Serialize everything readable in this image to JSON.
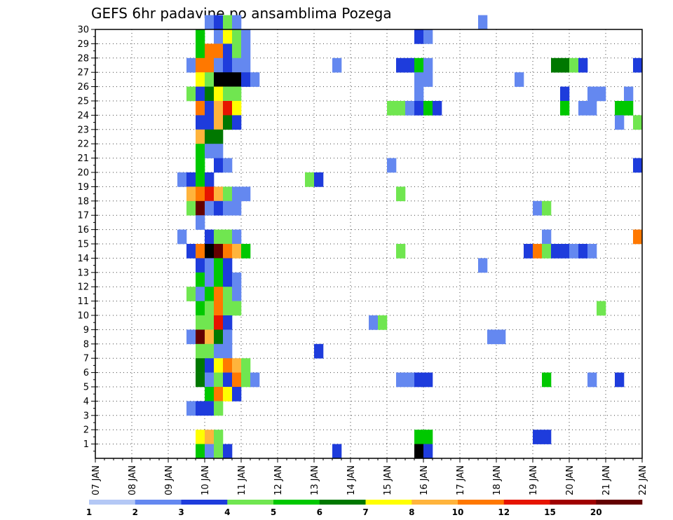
{
  "chart_data": {
    "type": "heatmap",
    "title": "GEFS 6hr padavine po ansamblima Pozega",
    "x_ticks": [
      "07 JAN",
      "08 JAN",
      "09 JAN",
      "10 JAN",
      "11 JAN",
      "12 JAN",
      "13 JAN",
      "14 JAN",
      "15 JAN",
      "16 JAN",
      "17 JAN",
      "18 JAN",
      "19 JAN",
      "20 JAN",
      "21 JAN",
      "22 JAN"
    ],
    "y_ticks": [
      "1",
      "2",
      "3",
      "4",
      "5",
      "6",
      "7",
      "8",
      "9",
      "10",
      "11",
      "12",
      "13",
      "14",
      "15",
      "16",
      "17",
      "18",
      "19",
      "20",
      "21",
      "22",
      "23",
      "24",
      "25",
      "26",
      "27",
      "28",
      "29",
      "30"
    ],
    "ylim": [
      0,
      30
    ],
    "x_step_hours": 6,
    "grid": true,
    "colorbar": {
      "labels": [
        "1",
        "2",
        "3",
        "4",
        "5",
        "6",
        "7",
        "8",
        "10",
        "12",
        "15",
        "20"
      ],
      "colors": [
        "#b4c8f5",
        "#6488f0",
        "#1e3cdc",
        "#70e650",
        "#00c800",
        "#007800",
        "#ffff00",
        "#ffb43c",
        "#ff7800",
        "#e61400",
        "#a00000",
        "#640000"
      ]
    },
    "cells": [
      [
        10,
        30,
        1
      ],
      [
        10.25,
        30,
        2
      ],
      [
        10.5,
        30,
        3
      ],
      [
        10.75,
        30,
        1
      ],
      [
        9.75,
        29,
        4
      ],
      [
        10.25,
        29,
        1
      ],
      [
        10.5,
        29,
        6
      ],
      [
        10.75,
        29,
        3
      ],
      [
        11,
        29,
        1
      ],
      [
        15.75,
        29,
        2
      ],
      [
        16,
        29,
        1
      ],
      [
        17.5,
        30,
        1
      ],
      [
        9.75,
        28,
        4
      ],
      [
        10,
        28,
        8
      ],
      [
        10.25,
        28,
        8
      ],
      [
        10.5,
        28,
        2
      ],
      [
        10.75,
        28,
        3
      ],
      [
        11,
        28,
        1
      ],
      [
        9.5,
        27,
        1
      ],
      [
        9.75,
        27,
        8
      ],
      [
        10,
        27,
        8
      ],
      [
        10.25,
        27,
        1
      ],
      [
        10.5,
        27,
        2
      ],
      [
        10.75,
        27,
        1
      ],
      [
        11,
        27,
        1
      ],
      [
        13.5,
        27,
        1
      ],
      [
        15.25,
        27,
        2
      ],
      [
        15.5,
        27,
        2
      ],
      [
        15.75,
        27,
        4
      ],
      [
        16,
        27,
        1
      ],
      [
        19.5,
        27,
        5
      ],
      [
        19.75,
        27,
        5
      ],
      [
        20,
        27,
        3
      ],
      [
        20.25,
        27,
        2
      ],
      [
        21.75,
        27,
        2
      ],
      [
        9.75,
        26,
        6
      ],
      [
        10,
        26,
        3
      ],
      [
        10.25,
        26,
        13
      ],
      [
        10.5,
        26,
        14
      ],
      [
        10.75,
        26,
        14
      ],
      [
        11,
        26,
        2
      ],
      [
        11.25,
        26,
        1
      ],
      [
        15.75,
        26,
        1
      ],
      [
        16,
        26,
        1
      ],
      [
        18.5,
        26,
        1
      ],
      [
        9.5,
        25,
        3
      ],
      [
        9.75,
        25,
        2
      ],
      [
        10,
        25,
        5
      ],
      [
        10.25,
        25,
        6
      ],
      [
        10.5,
        25,
        3
      ],
      [
        10.75,
        25,
        3
      ],
      [
        15.75,
        25,
        1
      ],
      [
        19.75,
        25,
        2
      ],
      [
        20.5,
        25,
        1
      ],
      [
        20.75,
        25,
        1
      ],
      [
        21.5,
        25,
        1
      ],
      [
        9.75,
        24,
        8
      ],
      [
        10,
        24,
        2
      ],
      [
        10.25,
        24,
        7
      ],
      [
        10.5,
        24,
        9
      ],
      [
        10.75,
        24,
        6
      ],
      [
        15,
        24,
        3
      ],
      [
        15.25,
        24,
        3
      ],
      [
        15.5,
        24,
        1
      ],
      [
        15.75,
        24,
        2
      ],
      [
        16,
        24,
        4
      ],
      [
        16.25,
        24,
        2
      ],
      [
        19.75,
        24,
        4
      ],
      [
        20.25,
        24,
        1
      ],
      [
        20.5,
        24,
        1
      ],
      [
        21.25,
        24,
        4
      ],
      [
        21.5,
        24,
        4
      ],
      [
        9.75,
        23,
        2
      ],
      [
        10,
        23,
        2
      ],
      [
        10.25,
        23,
        7
      ],
      [
        10.5,
        23,
        5
      ],
      [
        10.75,
        23,
        2
      ],
      [
        21.25,
        23,
        1
      ],
      [
        21.75,
        23,
        3
      ],
      [
        9.75,
        22,
        7
      ],
      [
        10,
        22,
        5
      ],
      [
        10.25,
        22,
        5
      ],
      [
        9.75,
        21,
        4
      ],
      [
        10,
        21,
        1
      ],
      [
        10.25,
        21,
        1
      ],
      [
        9.75,
        20,
        4
      ],
      [
        10.25,
        20,
        2
      ],
      [
        10.5,
        20,
        1
      ],
      [
        15,
        20,
        1
      ],
      [
        21.75,
        20,
        2
      ],
      [
        9.25,
        19,
        1
      ],
      [
        9.5,
        19,
        2
      ],
      [
        9.75,
        19,
        4
      ],
      [
        10,
        19,
        2
      ],
      [
        12.75,
        19,
        3
      ],
      [
        13,
        19,
        2
      ],
      [
        9.5,
        18,
        7
      ],
      [
        9.75,
        18,
        8
      ],
      [
        10,
        18,
        9
      ],
      [
        10.25,
        18,
        7
      ],
      [
        10.5,
        18,
        3
      ],
      [
        10.75,
        18,
        1
      ],
      [
        11,
        18,
        1
      ],
      [
        15.25,
        18,
        3
      ],
      [
        9.5,
        17,
        3
      ],
      [
        9.75,
        17,
        11
      ],
      [
        10,
        17,
        1
      ],
      [
        10.25,
        17,
        2
      ],
      [
        10.5,
        17,
        1
      ],
      [
        10.75,
        17,
        1
      ],
      [
        19,
        17,
        1
      ],
      [
        19.25,
        17,
        3
      ],
      [
        9.75,
        16,
        1
      ],
      [
        9.25,
        15,
        1
      ],
      [
        10,
        15,
        2
      ],
      [
        10.25,
        15,
        3
      ],
      [
        10.5,
        15,
        3
      ],
      [
        10.75,
        15,
        1
      ],
      [
        19.25,
        15,
        1
      ],
      [
        21.75,
        15,
        8
      ],
      [
        9.5,
        14,
        2
      ],
      [
        9.75,
        14,
        8
      ],
      [
        10,
        14,
        13
      ],
      [
        10.25,
        14,
        11
      ],
      [
        10.5,
        14,
        8
      ],
      [
        10.75,
        14,
        7
      ],
      [
        11,
        14,
        4
      ],
      [
        15.25,
        14,
        3
      ],
      [
        18.75,
        14,
        2
      ],
      [
        19,
        14,
        8
      ],
      [
        19.25,
        14,
        3
      ],
      [
        19.5,
        14,
        2
      ],
      [
        19.75,
        14,
        2
      ],
      [
        20,
        14,
        1
      ],
      [
        20.25,
        14,
        2
      ],
      [
        20.5,
        14,
        1
      ],
      [
        9.75,
        13,
        2
      ],
      [
        10,
        13,
        1
      ],
      [
        10.25,
        13,
        4
      ],
      [
        10.5,
        13,
        2
      ],
      [
        17.5,
        13,
        1
      ],
      [
        9.75,
        12,
        4
      ],
      [
        10,
        12,
        1
      ],
      [
        10.25,
        12,
        4
      ],
      [
        10.5,
        12,
        2
      ],
      [
        10.75,
        12,
        1
      ],
      [
        9.5,
        11,
        3
      ],
      [
        9.75,
        11,
        1
      ],
      [
        10,
        11,
        4
      ],
      [
        10.25,
        11,
        8
      ],
      [
        10.5,
        11,
        3
      ],
      [
        10.75,
        11,
        1
      ],
      [
        9.75,
        10,
        4
      ],
      [
        10,
        10,
        3
      ],
      [
        10.25,
        10,
        8
      ],
      [
        10.5,
        10,
        3
      ],
      [
        10.75,
        10,
        3
      ],
      [
        20.75,
        10,
        3
      ],
      [
        9.75,
        9,
        3
      ],
      [
        10,
        9,
        3
      ],
      [
        10.25,
        9,
        9
      ],
      [
        10.5,
        9,
        2
      ],
      [
        14.5,
        9,
        1
      ],
      [
        14.75,
        9,
        3
      ],
      [
        9.5,
        8,
        1
      ],
      [
        9.75,
        8,
        11
      ],
      [
        10,
        8,
        7
      ],
      [
        10.25,
        8,
        5
      ],
      [
        10.5,
        8,
        1
      ],
      [
        17.75,
        8,
        1
      ],
      [
        18,
        8,
        1
      ],
      [
        9.75,
        7,
        3
      ],
      [
        10,
        7,
        3
      ],
      [
        10.25,
        7,
        1
      ],
      [
        10.5,
        7,
        1
      ],
      [
        13,
        7,
        2
      ],
      [
        9.75,
        6,
        5
      ],
      [
        10,
        6,
        2
      ],
      [
        10.25,
        6,
        6
      ],
      [
        10.5,
        6,
        8
      ],
      [
        10.75,
        6,
        7
      ],
      [
        11,
        6,
        3
      ],
      [
        9.75,
        5,
        5
      ],
      [
        10,
        5,
        1
      ],
      [
        10.25,
        5,
        3
      ],
      [
        10.5,
        5,
        2
      ],
      [
        10.75,
        5,
        8
      ],
      [
        11,
        5,
        3
      ],
      [
        11.25,
        5,
        1
      ],
      [
        15.25,
        5,
        1
      ],
      [
        15.5,
        5,
        1
      ],
      [
        15.75,
        5,
        2
      ],
      [
        16,
        5,
        2
      ],
      [
        19.25,
        5,
        4
      ],
      [
        20.5,
        5,
        1
      ],
      [
        21.25,
        5,
        2
      ],
      [
        10,
        4,
        4
      ],
      [
        10.25,
        4,
        8
      ],
      [
        10.5,
        4,
        6
      ],
      [
        10.75,
        4,
        2
      ],
      [
        9.5,
        3,
        1
      ],
      [
        9.75,
        3,
        2
      ],
      [
        10,
        3,
        2
      ],
      [
        10.25,
        3,
        3
      ],
      [
        9.75,
        1,
        6
      ],
      [
        10,
        1,
        7
      ],
      [
        10.25,
        1,
        3
      ],
      [
        15.75,
        1,
        4
      ],
      [
        16,
        1,
        4
      ],
      [
        19,
        1,
        2
      ],
      [
        19.25,
        1,
        2
      ],
      [
        9.75,
        0,
        4
      ],
      [
        10,
        0,
        1
      ],
      [
        10.25,
        0,
        3
      ],
      [
        10.5,
        0,
        2
      ],
      [
        13.5,
        0,
        2
      ],
      [
        15.75,
        0,
        13
      ],
      [
        16,
        0,
        2
      ]
    ]
  }
}
